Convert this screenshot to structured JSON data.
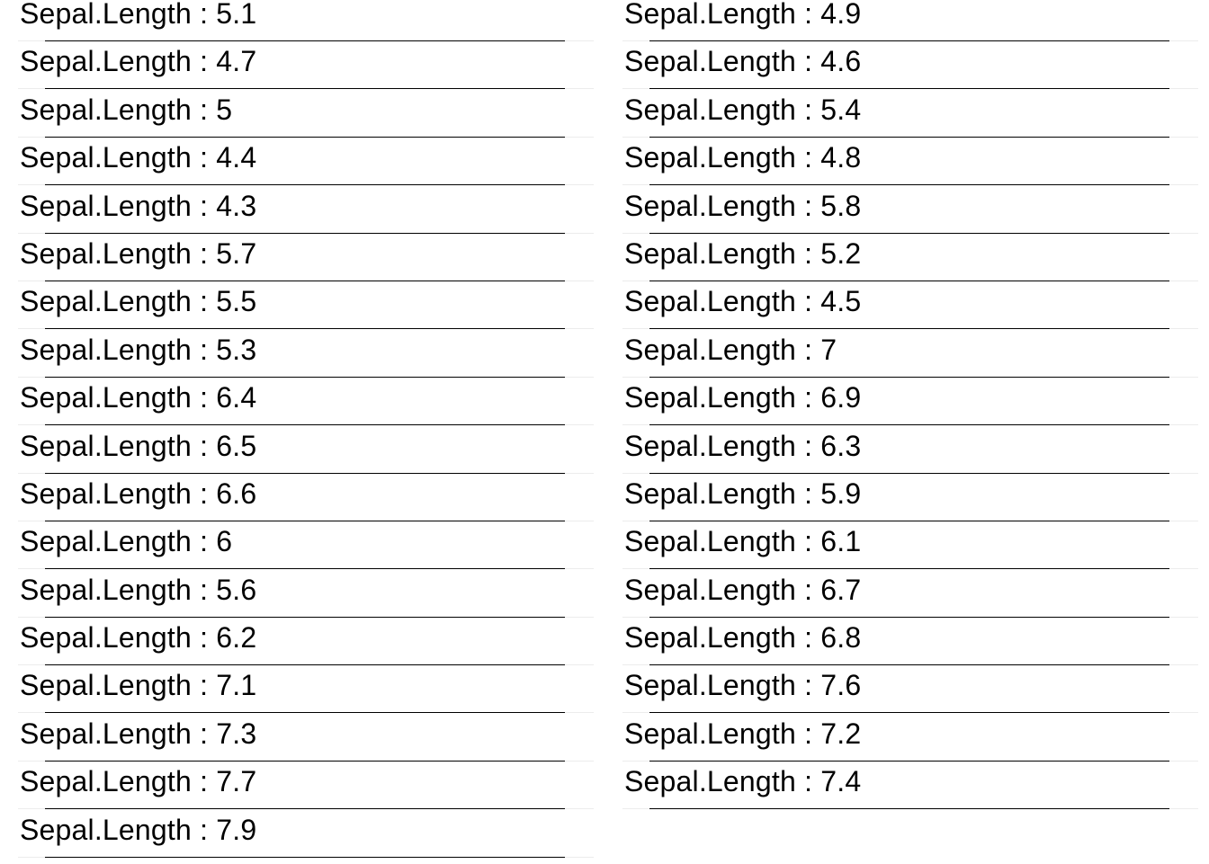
{
  "colors": {
    "background": "#ffffff",
    "text": "#000000",
    "rule": "#000000",
    "faint_line": "#ececec"
  },
  "columns": [
    {
      "rows": [
        {
          "label": "Sepal.Length : 5.1"
        },
        {
          "label": "Sepal.Length : 4.7"
        },
        {
          "label": "Sepal.Length : 5"
        },
        {
          "label": "Sepal.Length : 4.4"
        },
        {
          "label": "Sepal.Length : 4.3"
        },
        {
          "label": "Sepal.Length : 5.7"
        },
        {
          "label": "Sepal.Length : 5.5"
        },
        {
          "label": "Sepal.Length : 5.3"
        },
        {
          "label": "Sepal.Length : 6.4"
        },
        {
          "label": "Sepal.Length : 6.5"
        },
        {
          "label": "Sepal.Length : 6.6"
        },
        {
          "label": "Sepal.Length : 6"
        },
        {
          "label": "Sepal.Length : 5.6"
        },
        {
          "label": "Sepal.Length : 6.2"
        },
        {
          "label": "Sepal.Length : 7.1"
        },
        {
          "label": "Sepal.Length : 7.3"
        },
        {
          "label": "Sepal.Length : 7.7"
        },
        {
          "label": "Sepal.Length : 7.9"
        }
      ]
    },
    {
      "rows": [
        {
          "label": "Sepal.Length : 4.9"
        },
        {
          "label": "Sepal.Length : 4.6"
        },
        {
          "label": "Sepal.Length : 5.4"
        },
        {
          "label": "Sepal.Length : 4.8"
        },
        {
          "label": "Sepal.Length : 5.8"
        },
        {
          "label": "Sepal.Length : 5.2"
        },
        {
          "label": "Sepal.Length : 4.5"
        },
        {
          "label": "Sepal.Length : 7"
        },
        {
          "label": "Sepal.Length : 6.9"
        },
        {
          "label": "Sepal.Length : 6.3"
        },
        {
          "label": "Sepal.Length : 5.9"
        },
        {
          "label": "Sepal.Length : 6.1"
        },
        {
          "label": "Sepal.Length : 6.7"
        },
        {
          "label": "Sepal.Length : 6.8"
        },
        {
          "label": "Sepal.Length : 7.6"
        },
        {
          "label": "Sepal.Length : 7.2"
        },
        {
          "label": "Sepal.Length : 7.4"
        }
      ]
    }
  ]
}
